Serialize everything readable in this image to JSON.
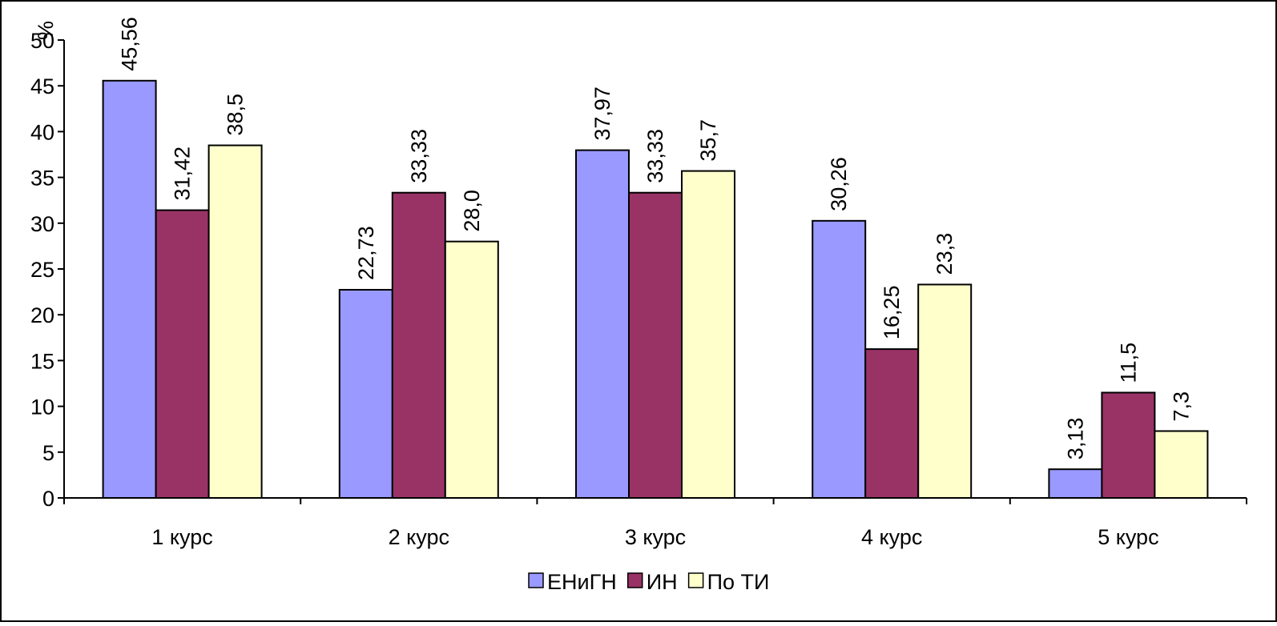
{
  "chart_data": {
    "type": "bar",
    "categories": [
      "1 курс",
      "2 курс",
      "3 курс",
      "4 курс",
      "5 курс"
    ],
    "series": [
      {
        "name": "ЕНиГН",
        "values": [
          45.56,
          22.73,
          37.97,
          30.26,
          3.13
        ],
        "labels": [
          "45,56",
          "22,73",
          "37,97",
          "30,26",
          "3,13"
        ],
        "color": "#9999FF"
      },
      {
        "name": "ИН",
        "values": [
          31.42,
          33.33,
          33.33,
          16.25,
          11.5
        ],
        "labels": [
          "31,42",
          "33,33",
          "33,33",
          "16,25",
          "11,5"
        ],
        "color": "#993366"
      },
      {
        "name": "По ТИ",
        "values": [
          38.5,
          28.0,
          35.7,
          23.3,
          7.3
        ],
        "labels": [
          "38,5",
          "28,0",
          "35,7",
          "23,3",
          "7,3"
        ],
        "color": "#FFFFCC"
      }
    ],
    "y_unit": "%",
    "ylim": [
      0,
      50
    ],
    "yticks": [
      "0",
      "5",
      "10",
      "15",
      "20",
      "25",
      "30",
      "35",
      "40",
      "45",
      "50"
    ],
    "grid": false,
    "legend_position": "bottom"
  }
}
